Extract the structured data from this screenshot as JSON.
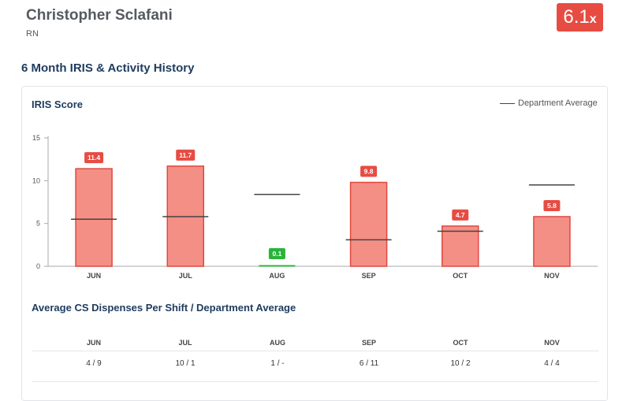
{
  "header": {
    "name": "Christopher Sclafani",
    "role": "RN",
    "score": {
      "value": "6.1",
      "suffix": "x",
      "color": "#e74c43"
    }
  },
  "section": {
    "title": "6 Month IRIS & Activity History"
  },
  "chart": {
    "title": "IRIS Score",
    "legend_label": "Department Average"
  },
  "chart_data": {
    "type": "bar",
    "title": "IRIS Score",
    "categories": [
      "JUN",
      "JUL",
      "AUG",
      "SEP",
      "OCT",
      "NOV"
    ],
    "values": [
      11.4,
      11.7,
      0.1,
      9.8,
      4.7,
      5.8
    ],
    "value_labels": [
      "11.4",
      "11.7",
      "0.1",
      "9.8",
      "4.7",
      "5.8"
    ],
    "department_average": [
      5.5,
      5.8,
      8.4,
      3.1,
      4.1,
      9.5
    ],
    "department_average_label": "Department Average",
    "ylim": [
      0,
      15
    ],
    "yticks": [
      0,
      5,
      10,
      15
    ],
    "bar_color": "#f48f86",
    "bar_border_color": "#e0483f",
    "label_color_high": "#e74c43",
    "label_color_low": "#28b43a",
    "low_threshold": 1
  },
  "table": {
    "title": "Average CS Dispenses Per Shift / Department Average",
    "headers": [
      "JUN",
      "JUL",
      "AUG",
      "SEP",
      "OCT",
      "NOV"
    ],
    "values": [
      "4 / 9",
      "10 / 1",
      "1 / -",
      "6 / 11",
      "10 / 2",
      "4 / 4"
    ]
  }
}
